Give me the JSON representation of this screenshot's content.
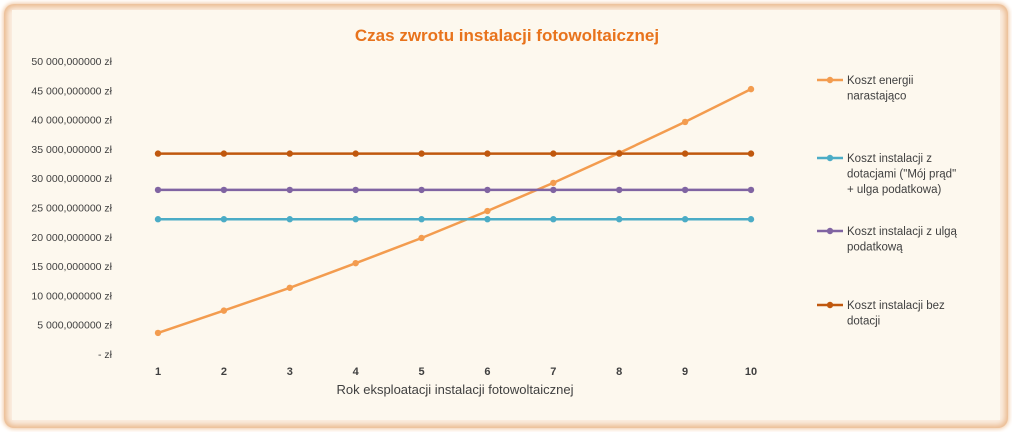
{
  "chart_data": {
    "type": "line",
    "title": "Czas zwrotu instalacji fotowoltaicznej",
    "xlabel": "Rok eksploatacji instalacji fotowoltaicznej",
    "ylabel": "",
    "categories": [
      "1",
      "2",
      "3",
      "4",
      "5",
      "6",
      "7",
      "8",
      "9",
      "10"
    ],
    "ylim": [
      0,
      50000000
    ],
    "yticks": [
      {
        "value": 0,
        "label": "-    zł"
      },
      {
        "value": 5000000,
        "label": "5 000,000000 zł"
      },
      {
        "value": 10000000,
        "label": "10 000,000000 zł"
      },
      {
        "value": 15000000,
        "label": "15 000,000000 zł"
      },
      {
        "value": 20000000,
        "label": "20 000,000000 zł"
      },
      {
        "value": 25000000,
        "label": "25 000,000000 zł"
      },
      {
        "value": 30000000,
        "label": "30 000,000000 zł"
      },
      {
        "value": 35000000,
        "label": "35 000,000000 zł"
      },
      {
        "value": 40000000,
        "label": "40 000,000000 zł"
      },
      {
        "value": 45000000,
        "label": "45 000,000000 zł"
      },
      {
        "value": 50000000,
        "label": "50 000,000000 zł"
      }
    ],
    "grid": false,
    "legend_position": "right",
    "series": [
      {
        "name": "Koszt energii narastająco",
        "legend_lines": [
          "Koszt energii",
          "narastająco"
        ],
        "color": "#f39c4f",
        "values": [
          3600000,
          7400000,
          11300000,
          15500000,
          19800000,
          24400000,
          29200000,
          34300000,
          39600000,
          45200000
        ]
      },
      {
        "name": "Koszt instalacji z dotacjami (\"Mój prąd\" + ulga podatkowa)",
        "legend_lines": [
          "Koszt instalacji z",
          "dotacjami (\"Mój prąd\"",
          "+ ulga podatkowa)"
        ],
        "color": "#4bacc6",
        "values": [
          23000000,
          23000000,
          23000000,
          23000000,
          23000000,
          23000000,
          23000000,
          23000000,
          23000000,
          23000000
        ]
      },
      {
        "name": "Koszt instalacji z ulgą podatkową",
        "legend_lines": [
          "Koszt instalacji z ulgą",
          "podatkową"
        ],
        "color": "#8064a2",
        "values": [
          28000000,
          28000000,
          28000000,
          28000000,
          28000000,
          28000000,
          28000000,
          28000000,
          28000000,
          28000000
        ]
      },
      {
        "name": "Koszt instalacji bez dotacji",
        "legend_lines": [
          "Koszt instalacji bez",
          "dotacji"
        ],
        "color": "#c0580e",
        "values": [
          34200000,
          34200000,
          34200000,
          34200000,
          34200000,
          34200000,
          34200000,
          34200000,
          34200000,
          34200000
        ]
      }
    ]
  }
}
